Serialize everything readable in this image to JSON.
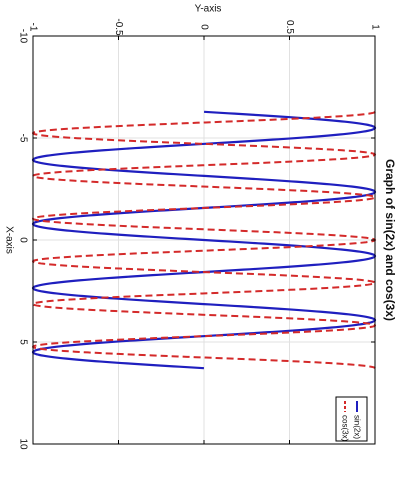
{
  "chart_data": {
    "type": "line",
    "title": "Graph of sin(2x) and cos(3x)",
    "xlabel": "X-axis",
    "ylabel": "Y-axis",
    "xlim": [
      -10,
      10
    ],
    "ylim": [
      -1,
      1
    ],
    "x_ticks": [
      "-10",
      "-5",
      "0",
      "5",
      "10"
    ],
    "y_ticks": [
      "-1",
      "-0.5",
      "0",
      "0.5",
      "1"
    ],
    "grid": true,
    "legend_position": "bottom-right",
    "orientation": "rotated 90° clockwise",
    "x_domain": [
      -6.283,
      6.283
    ],
    "series": [
      {
        "name": "sin(2x)",
        "formula": "sin(2x)",
        "color": "#1f1fbf",
        "style": "solid"
      },
      {
        "name": "cos(3x)",
        "formula": "cos(3x)",
        "color": "#d42a2a",
        "style": "dashed"
      }
    ]
  }
}
